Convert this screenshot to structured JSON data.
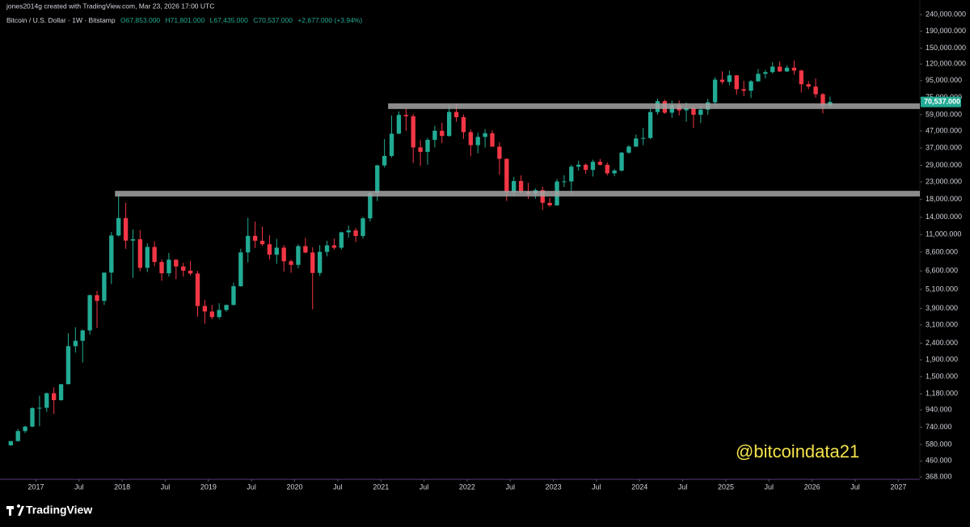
{
  "chart_data": {
    "type": "candlestick",
    "caption": "jones2014g created with TradingView.com, Mar 23, 2026 17:00 UTC",
    "symbol": "Bitcoin / U.S. Dollar · 1W · Bitstamp",
    "ohlc_labels": [
      "O67,853.000",
      "H71,801.000",
      "L67,435.000",
      "C70,537.000"
    ],
    "change_label": "+2,677.000 (+3.94%)",
    "watermark": "@bitcoindata21",
    "footer_brand": "TradingView",
    "log_scale": true,
    "up_color": "#22ab94",
    "down_color": "#f23645",
    "level_color": "#a3a3a3",
    "x": [
      "2016-09",
      "2016-10",
      "2016-11",
      "2016-12",
      "2017-01",
      "2017-02",
      "2017-03",
      "2017-04",
      "2017-05",
      "2017-06",
      "2017-07",
      "2017-08",
      "2017-09",
      "2017-10",
      "2017-11",
      "2017-12",
      "2018-01",
      "2018-02",
      "2018-03",
      "2018-04",
      "2018-05",
      "2018-06",
      "2018-07",
      "2018-08",
      "2018-09",
      "2018-10",
      "2018-11",
      "2018-12",
      "2019-01",
      "2019-02",
      "2019-03",
      "2019-04",
      "2019-05",
      "2019-06",
      "2019-07",
      "2019-08",
      "2019-09",
      "2019-10",
      "2019-11",
      "2019-12",
      "2020-01",
      "2020-02",
      "2020-03",
      "2020-04",
      "2020-05",
      "2020-06",
      "2020-07",
      "2020-08",
      "2020-09",
      "2020-10",
      "2020-11",
      "2020-12",
      "2021-01",
      "2021-02",
      "2021-03",
      "2021-04",
      "2021-05",
      "2021-06",
      "2021-07",
      "2021-08",
      "2021-09",
      "2021-10",
      "2021-11",
      "2021-12",
      "2022-01",
      "2022-02",
      "2022-03",
      "2022-04",
      "2022-05",
      "2022-06",
      "2022-07",
      "2022-08",
      "2022-09",
      "2022-10",
      "2022-11",
      "2022-12",
      "2023-01",
      "2023-02",
      "2023-03",
      "2023-04",
      "2023-05",
      "2023-06",
      "2023-07",
      "2023-08",
      "2023-09",
      "2023-10",
      "2023-11",
      "2023-12",
      "2024-01",
      "2024-02",
      "2024-03",
      "2024-04",
      "2024-05",
      "2024-06",
      "2024-07",
      "2024-08",
      "2024-09",
      "2024-10",
      "2024-11",
      "2024-12",
      "2025-01",
      "2025-02",
      "2025-03",
      "2025-04",
      "2025-05",
      "2025-06",
      "2025-07",
      "2025-08",
      "2025-09",
      "2025-10",
      "2025-11",
      "2025-12",
      "2026-01",
      "2026-02",
      "2026-03"
    ],
    "open": [
      573,
      608,
      700,
      745,
      965,
      970,
      1190,
      1080,
      1350,
      2300,
      2480,
      2870,
      4700,
      4340,
      6450,
      10850,
      13850,
      10100,
      10300,
      6900,
      9240,
      7490,
      6390,
      7730,
      7030,
      6630,
      6370,
      4040,
      3740,
      3460,
      3820,
      4100,
      5330,
      8560,
      10800,
      10080,
      9600,
      8290,
      9150,
      7560,
      7190,
      9350,
      8550,
      6420,
      8630,
      9450,
      9140,
      11350,
      11650,
      10780,
      13800,
      19700,
      28980,
      33100,
      45200,
      58800,
      57750,
      37300,
      35040,
      41460,
      47100,
      43800,
      61300,
      57000,
      46200,
      38500,
      43200,
      45500,
      37700,
      31800,
      19900,
      23300,
      20050,
      19430,
      20500,
      17160,
      16540,
      23130,
      23150,
      28480,
      29250,
      27200,
      30480,
      29230,
      25940,
      26970,
      34660,
      37720,
      42280,
      42580,
      61200,
      71300,
      60650,
      67500,
      62700,
      64600,
      58950,
      63300,
      70200,
      96400,
      93400,
      102400,
      84300,
      82500,
      94200,
      104600,
      107100,
      115700,
      108200,
      114000,
      109500,
      90400,
      87500,
      78600,
      67000
    ],
    "high": [
      610,
      720,
      755,
      980,
      1150,
      1200,
      1290,
      1350,
      2760,
      3000,
      2900,
      4750,
      5000,
      6450,
      11400,
      19700,
      17200,
      11800,
      11700,
      9750,
      10000,
      7760,
      8500,
      7760,
      7400,
      7600,
      6600,
      4400,
      4100,
      4200,
      4110,
      5600,
      9000,
      13900,
      13200,
      12300,
      10900,
      10350,
      9500,
      7750,
      9580,
      10500,
      9200,
      9480,
      10080,
      10400,
      11450,
      12480,
      12080,
      14100,
      19900,
      29300,
      41950,
      58350,
      61780,
      64900,
      59600,
      41300,
      42600,
      50500,
      52900,
      67000,
      69000,
      59100,
      47900,
      45800,
      48200,
      47400,
      40000,
      31900,
      24650,
      25200,
      22700,
      21000,
      21470,
      18400,
      23900,
      25250,
      29200,
      31000,
      29800,
      31400,
      31800,
      30250,
      27500,
      35000,
      38450,
      44700,
      48970,
      64000,
      73800,
      72800,
      71900,
      71950,
      70000,
      65600,
      66500,
      73600,
      99800,
      108300,
      109300,
      102800,
      95000,
      95800,
      111900,
      110500,
      123200,
      124400,
      117900,
      126200,
      111000,
      94600,
      97900,
      80000,
      76000
    ],
    "low": [
      570,
      605,
      680,
      740,
      750,
      915,
      890,
      1070,
      1350,
      2100,
      1830,
      2700,
      2970,
      4100,
      5500,
      10700,
      9000,
      6000,
      6600,
      6500,
      7050,
      5750,
      6100,
      5880,
      6100,
      6200,
      3480,
      3150,
      3350,
      3370,
      3730,
      4080,
      5300,
      7450,
      9100,
      9400,
      7750,
      7300,
      6550,
      6430,
      6850,
      8450,
      3850,
      6150,
      8100,
      8900,
      8900,
      10530,
      9880,
      10400,
      13200,
      17600,
      28130,
      32300,
      44950,
      47000,
      30000,
      28800,
      29300,
      37300,
      39600,
      43300,
      53500,
      42000,
      32900,
      34300,
      37200,
      37600,
      25400,
      17600,
      18800,
      19600,
      18150,
      18200,
      15500,
      16250,
      16500,
      21400,
      19550,
      26900,
      25800,
      24800,
      28900,
      25200,
      24900,
      26550,
      34100,
      37600,
      38500,
      41900,
      59000,
      59600,
      56500,
      58400,
      53500,
      49000,
      52550,
      58900,
      66800,
      90500,
      89200,
      78200,
      76600,
      74500,
      93400,
      98200,
      105100,
      107300,
      107300,
      103500,
      80600,
      84400,
      75000,
      60000,
      65000
    ],
    "close": [
      608,
      700,
      745,
      965,
      970,
      1190,
      1080,
      1350,
      2300,
      2480,
      2870,
      4700,
      4340,
      6450,
      10850,
      13850,
      10100,
      10300,
      6900,
      9240,
      7490,
      6390,
      7730,
      7030,
      6630,
      6370,
      4040,
      3740,
      3460,
      3820,
      4100,
      5330,
      8560,
      10800,
      10080,
      9600,
      8290,
      9150,
      7560,
      7190,
      9350,
      8550,
      6420,
      8630,
      9450,
      9140,
      11350,
      11650,
      10780,
      13800,
      19700,
      28980,
      33100,
      45200,
      58800,
      57750,
      37300,
      35040,
      41460,
      47100,
      43800,
      61300,
      57000,
      46200,
      38500,
      43200,
      45500,
      37700,
      31800,
      19900,
      23300,
      20050,
      19430,
      20500,
      17160,
      16540,
      23130,
      23150,
      28480,
      29250,
      27200,
      30480,
      29230,
      25940,
      26970,
      34660,
      37720,
      42280,
      42580,
      61200,
      71300,
      60650,
      67500,
      62700,
      64600,
      58950,
      63300,
      70200,
      96400,
      93400,
      102400,
      84300,
      82500,
      94200,
      104600,
      107100,
      115700,
      108200,
      114000,
      109500,
      90400,
      87500,
      78600,
      67000,
      70537
    ],
    "levels": [
      {
        "value": 19500,
        "start": "2017-12"
      },
      {
        "value": 66500,
        "start": "2021-02"
      }
    ],
    "last_price": {
      "value": 70537,
      "label": "70,537.000"
    },
    "xlim": [
      "2016-08",
      "2027-04"
    ],
    "xticks": [
      {
        "value": "2017-01",
        "label": "2017"
      },
      {
        "value": "2017-07",
        "label": "Jul"
      },
      {
        "value": "2018-01",
        "label": "2018"
      },
      {
        "value": "2018-07",
        "label": "Jul"
      },
      {
        "value": "2019-01",
        "label": "2019"
      },
      {
        "value": "2019-07",
        "label": "Jul"
      },
      {
        "value": "2020-01",
        "label": "2020"
      },
      {
        "value": "2020-07",
        "label": "Jul"
      },
      {
        "value": "2021-01",
        "label": "2021"
      },
      {
        "value": "2021-07",
        "label": "Jul"
      },
      {
        "value": "2022-01",
        "label": "2022"
      },
      {
        "value": "2022-07",
        "label": "Jul"
      },
      {
        "value": "2023-01",
        "label": "2023"
      },
      {
        "value": "2023-07",
        "label": "Jul"
      },
      {
        "value": "2024-01",
        "label": "2024"
      },
      {
        "value": "2024-07",
        "label": "Jul"
      },
      {
        "value": "2025-01",
        "label": "2025"
      },
      {
        "value": "2025-07",
        "label": "Jul"
      },
      {
        "value": "2026-01",
        "label": "2026"
      },
      {
        "value": "2026-07",
        "label": "Jul"
      },
      {
        "value": "2027-01",
        "label": "2027"
      }
    ],
    "ylim": [
      360,
      257000
    ],
    "yticks": [
      {
        "value": 368,
        "label": "368.000"
      },
      {
        "value": 460,
        "label": "460.000"
      },
      {
        "value": 580,
        "label": "580.000"
      },
      {
        "value": 740,
        "label": "740.000"
      },
      {
        "value": 940,
        "label": "940.000"
      },
      {
        "value": 1180,
        "label": "1,180.000"
      },
      {
        "value": 1500,
        "label": "1,500.000"
      },
      {
        "value": 1900,
        "label": "1,900.000"
      },
      {
        "value": 2400,
        "label": "2,400.000"
      },
      {
        "value": 3100,
        "label": "3,100.000"
      },
      {
        "value": 3900,
        "label": "3,900.000"
      },
      {
        "value": 5100,
        "label": "5,100.000"
      },
      {
        "value": 6600,
        "label": "6,600.000"
      },
      {
        "value": 8600,
        "label": "8,600.000"
      },
      {
        "value": 11000,
        "label": "11,000.000"
      },
      {
        "value": 14000,
        "label": "14,000.000"
      },
      {
        "value": 18000,
        "label": "18,000.000"
      },
      {
        "value": 23000,
        "label": "23,000.000"
      },
      {
        "value": 29000,
        "label": "29,000.000"
      },
      {
        "value": 37000,
        "label": "37,000.000"
      },
      {
        "value": 47000,
        "label": "47,000.000"
      },
      {
        "value": 59000,
        "label": "59,000.000"
      },
      {
        "value": 75000,
        "label": "75,000.000"
      },
      {
        "value": 95000,
        "label": "95,000.000"
      },
      {
        "value": 120000,
        "label": "120,000.000"
      },
      {
        "value": 150000,
        "label": "150,000.000"
      },
      {
        "value": 190000,
        "label": "190,000.000"
      },
      {
        "value": 240000,
        "label": "240,000.000"
      }
    ]
  }
}
